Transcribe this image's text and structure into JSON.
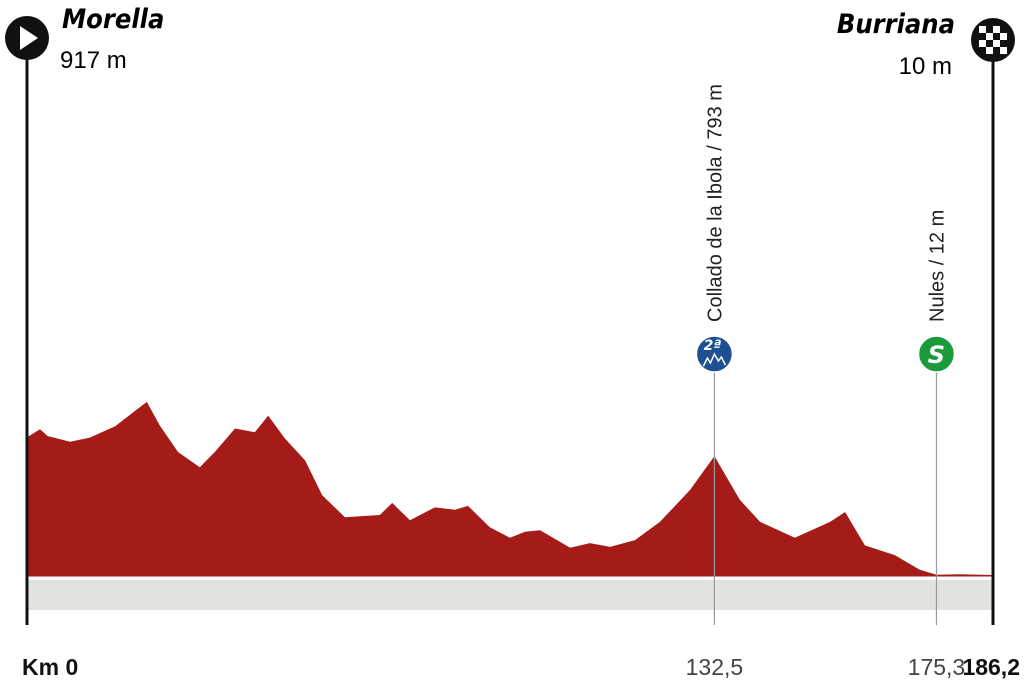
{
  "chart_data": {
    "type": "area",
    "color": "#a41b18",
    "start": {
      "name": "Morella",
      "label": "917 m"
    },
    "finish": {
      "name": "Burriana",
      "label": "10 m"
    },
    "climb": {
      "label": "Collado de la Ibola / 793 m",
      "badge": "2ª",
      "color": "#1d4f91"
    },
    "sprint": {
      "label": "Nules / 12 m",
      "badge": "S",
      "color": "#1b9a3c"
    },
    "x": [
      0,
      2.5,
      4,
      8.3,
      12.1,
      17,
      20.8,
      23.1,
      25.6,
      29.1,
      33.3,
      36.2,
      40.1,
      43.9,
      46.5,
      49.7,
      53.6,
      56.9,
      61.3,
      68.0,
      70.4,
      73.8,
      78.6,
      82.5,
      85,
      89.2,
      93.1,
      96,
      98.9,
      104.7,
      108.5,
      112.4,
      117.2,
      122,
      127.8,
      132.5,
      137.4,
      141.3,
      148,
      154.8,
      157.7,
      161.5,
      167.3,
      172.1,
      175.3,
      179.8,
      186.2
    ],
    "values": [
      917,
      970,
      925,
      888,
      915,
      990,
      1090,
      1150,
      995,
      820,
      720,
      820,
      975,
      950,
      1060,
      910,
      765,
      535,
      390,
      405,
      485,
      370,
      455,
      440,
      465,
      325,
      255,
      295,
      305,
      190,
      220,
      195,
      240,
      360,
      570,
      793,
      505,
      360,
      255,
      360,
      425,
      205,
      140,
      45,
      12,
      15,
      10
    ],
    "xlim": [
      0,
      186.2
    ],
    "ylim": [
      0,
      3600
    ],
    "xticks": [
      {
        "value": 0,
        "label": "Km 0"
      },
      {
        "value": 132.5,
        "label": "132,5"
      },
      {
        "value": 175.3,
        "label": "175,3"
      },
      {
        "value": 186.2,
        "label": "186,2"
      }
    ]
  }
}
